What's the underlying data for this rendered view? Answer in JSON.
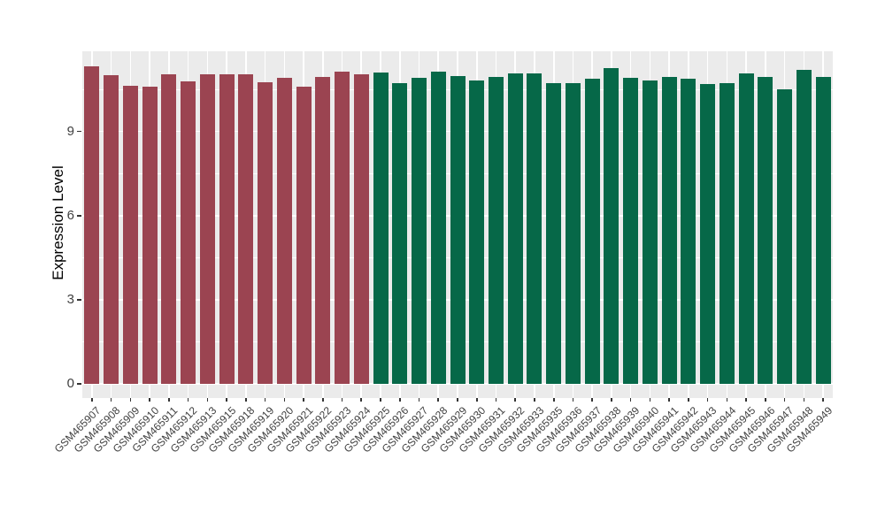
{
  "chart_data": {
    "type": "bar",
    "title": "",
    "xlabel": "",
    "ylabel": "Expression Level",
    "ylim": [
      0,
      11.86
    ],
    "yticks": [
      0,
      3,
      6,
      9
    ],
    "grid": true,
    "legend_position": "none",
    "categories": [
      "GSM465907",
      "GSM465908",
      "GSM465909",
      "GSM465910",
      "GSM465911",
      "GSM465912",
      "GSM465913",
      "GSM465915",
      "GSM465918",
      "GSM465919",
      "GSM465920",
      "GSM465921",
      "GSM465922",
      "GSM465923",
      "GSM465924",
      "GSM465925",
      "GSM465926",
      "GSM465927",
      "GSM465928",
      "GSM465929",
      "GSM465930",
      "GSM465931",
      "GSM465932",
      "GSM465933",
      "GSM465935",
      "GSM465936",
      "GSM465937",
      "GSM465938",
      "GSM465939",
      "GSM465940",
      "GSM465941",
      "GSM465942",
      "GSM465943",
      "GSM465944",
      "GSM465945",
      "GSM465946",
      "GSM465947",
      "GSM465948",
      "GSM465949"
    ],
    "values": [
      11.33,
      11.0,
      10.64,
      10.6,
      11.04,
      10.79,
      11.05,
      11.05,
      11.04,
      10.75,
      10.92,
      10.61,
      10.96,
      11.14,
      11.03,
      11.11,
      10.74,
      10.91,
      11.12,
      10.99,
      10.83,
      10.96,
      11.08,
      11.06,
      10.73,
      10.73,
      10.87,
      11.26,
      10.92,
      10.83,
      10.96,
      10.89,
      10.69,
      10.74,
      11.08,
      10.95,
      10.51,
      11.2,
      10.95
    ],
    "groups": [
      {
        "color": "#9B4451",
        "count": 15
      },
      {
        "color": "#066848",
        "count": 24
      }
    ],
    "colors": {
      "panel_bg": "#EBEBEB",
      "grid": "#FFFFFF",
      "axis_text": "#404040",
      "axis_title": "#000000",
      "tick": "#333333"
    }
  }
}
